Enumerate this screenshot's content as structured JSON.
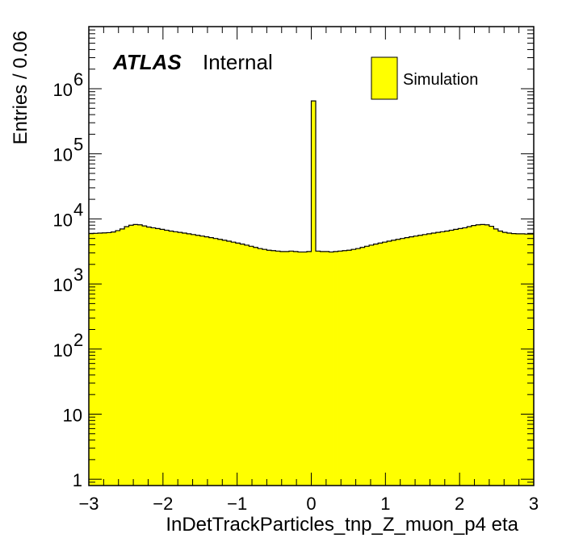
{
  "chart_data": {
    "type": "bar",
    "title": "",
    "xlabel": "InDetTrackParticles_tnp_Z_muon_p4 eta",
    "ylabel": "Entries / 0.06",
    "xlim": [
      -3,
      3
    ],
    "ylim": [
      0.8,
      9000000
    ],
    "y_scale": "log",
    "grid": false,
    "legend_position": "top-right",
    "fill_color": "#ffff00",
    "edge_color": "#000000",
    "bin_width": 0.06,
    "x_tick_labels": [
      "−3",
      "−2",
      "−1",
      "0",
      "1",
      "2",
      "3"
    ],
    "y_tick_labels": [
      {
        "base": "1",
        "exp": ""
      },
      {
        "base": "10",
        "exp": ""
      },
      {
        "base": "10",
        "exp": "2"
      },
      {
        "base": "10",
        "exp": "3"
      },
      {
        "base": "10",
        "exp": "4"
      },
      {
        "base": "10",
        "exp": "5"
      },
      {
        "base": "10",
        "exp": "6"
      }
    ],
    "series": [
      {
        "name": "Simulation",
        "bin_edges_start": -3.0,
        "values": [
          5950,
          6000,
          6050,
          6100,
          6150,
          6300,
          6600,
          7000,
          7600,
          8000,
          8200,
          8100,
          7800,
          7500,
          7300,
          7100,
          6900,
          6700,
          6500,
          6350,
          6200,
          6050,
          5900,
          5750,
          5600,
          5450,
          5300,
          5150,
          5000,
          4850,
          4700,
          4550,
          4400,
          4250,
          4100,
          3950,
          3800,
          3650,
          3500,
          3400,
          3300,
          3250,
          3200,
          3150,
          3150,
          3200,
          3150,
          3100,
          3100,
          3150,
          650000,
          3200,
          3150,
          3150,
          3100,
          3150,
          3200,
          3250,
          3300,
          3400,
          3500,
          3650,
          3800,
          3950,
          4100,
          4250,
          4400,
          4550,
          4700,
          4850,
          5000,
          5150,
          5300,
          5450,
          5600,
          5750,
          5900,
          6050,
          6200,
          6350,
          6500,
          6700,
          6900,
          7100,
          7300,
          7600,
          7900,
          8100,
          8200,
          8100,
          7700,
          7000,
          6500,
          6200,
          6050,
          5950,
          5900,
          5900,
          5850,
          5850
        ]
      }
    ]
  },
  "labels": {
    "atlas": "ATLAS",
    "internal": "Internal"
  },
  "legend": {
    "entries": [
      {
        "label": "Simulation",
        "color": "#ffff00"
      }
    ]
  }
}
